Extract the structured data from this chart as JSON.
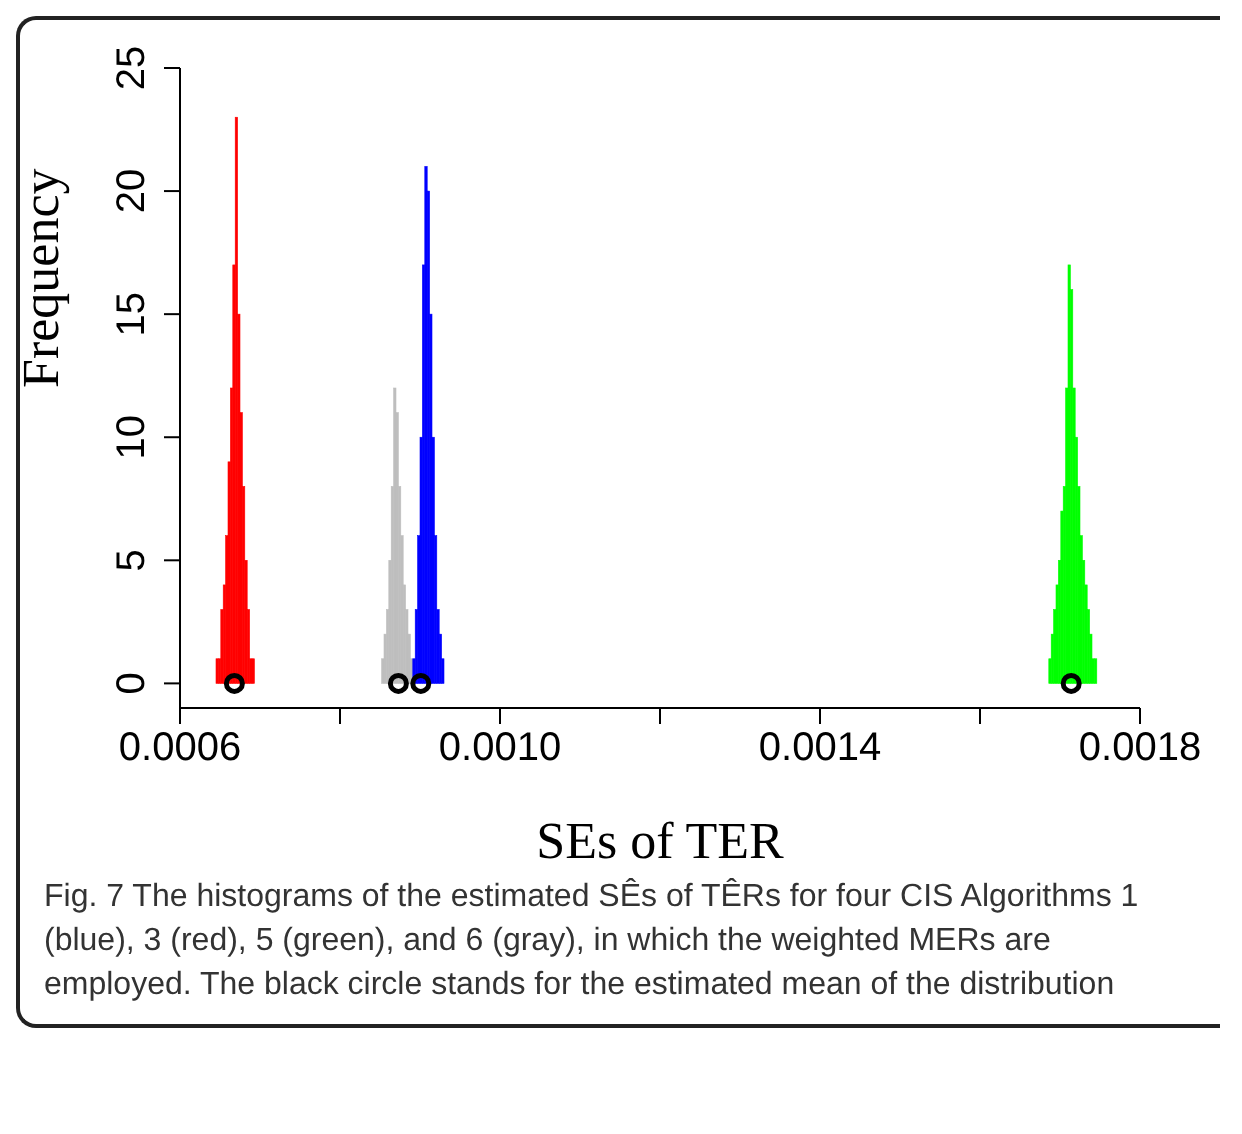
{
  "chart_data": {
    "type": "histogram",
    "xlabel": "SEs of TER",
    "ylabel": "Frequency",
    "xlim": [
      0.0006,
      0.0018
    ],
    "ylim": [
      -1,
      25
    ],
    "xticks": [
      {
        "value": 0.0006,
        "label": "0.0006"
      },
      {
        "value": 0.0008,
        "label": null
      },
      {
        "value": 0.001,
        "label": "0.0010"
      },
      {
        "value": 0.0012,
        "label": null
      },
      {
        "value": 0.0014,
        "label": "0.0014"
      },
      {
        "value": 0.0016,
        "label": null
      },
      {
        "value": 0.0018,
        "label": "0.0018"
      }
    ],
    "yticks": [
      0,
      5,
      10,
      15,
      20,
      25
    ],
    "series": [
      {
        "color": "#ff0000",
        "bins": [
          0.000645,
          0.000648,
          0.000651,
          0.000654,
          0.000657,
          0.00066,
          0.000663,
          0.000666,
          0.000669,
          0.000672,
          0.000675,
          0.000678,
          0.000681,
          0.000684,
          0.000687,
          0.00069,
          0.000693
        ],
        "values": [
          1,
          1,
          3,
          4,
          6,
          9,
          12,
          17,
          23,
          15,
          11,
          8,
          5,
          3,
          1,
          1
        ]
      },
      {
        "color": "#bebebe",
        "bins": [
          0.000852,
          0.000855,
          0.000858,
          0.000861,
          0.000864,
          0.000867,
          0.00087,
          0.000873,
          0.000876,
          0.000879,
          0.000882,
          0.000885,
          0.000888,
          0.000891
        ],
        "values": [
          1,
          2,
          3,
          5,
          8,
          12,
          11,
          8,
          6,
          4,
          3,
          2,
          1
        ]
      },
      {
        "color": "#0000ff",
        "bins": [
          0.000891,
          0.000894,
          0.000897,
          0.0009,
          0.000903,
          0.000906,
          0.000909,
          0.000912,
          0.000915,
          0.000918,
          0.000921,
          0.000924,
          0.000927,
          0.00093
        ],
        "values": [
          1,
          3,
          6,
          10,
          17,
          21,
          20,
          15,
          10,
          6,
          3,
          2,
          1
        ]
      },
      {
        "color": "#00ff00",
        "bins": [
          0.001686,
          0.001689,
          0.001692,
          0.001695,
          0.001698,
          0.001701,
          0.001704,
          0.001707,
          0.00171,
          0.001713,
          0.001716,
          0.001719,
          0.001722,
          0.001725,
          0.001728,
          0.001731,
          0.001734,
          0.001737,
          0.00174,
          0.001743,
          0.001746
        ],
        "values": [
          1,
          2,
          3,
          4,
          5,
          7,
          8,
          12,
          17,
          16,
          12,
          10,
          8,
          6,
          5,
          4,
          3,
          2,
          1,
          1
        ]
      },
      {
        "type": "scatter",
        "color": "#000000",
        "marker": "circle",
        "x": [
          0.000668,
          0.000873,
          0.000901,
          0.001714
        ],
        "values": [
          0,
          0,
          0,
          0
        ]
      }
    ],
    "annotations": [
      "Fig. 7 The histograms of the estimated SÊs of TÊRs for four CIS Algorithms 1 (blue), 3 (red), 5 (green), and 6 (gray), in which the weighted MERs are employed. The black circle stands for the estimated mean of the distribution"
    ]
  }
}
